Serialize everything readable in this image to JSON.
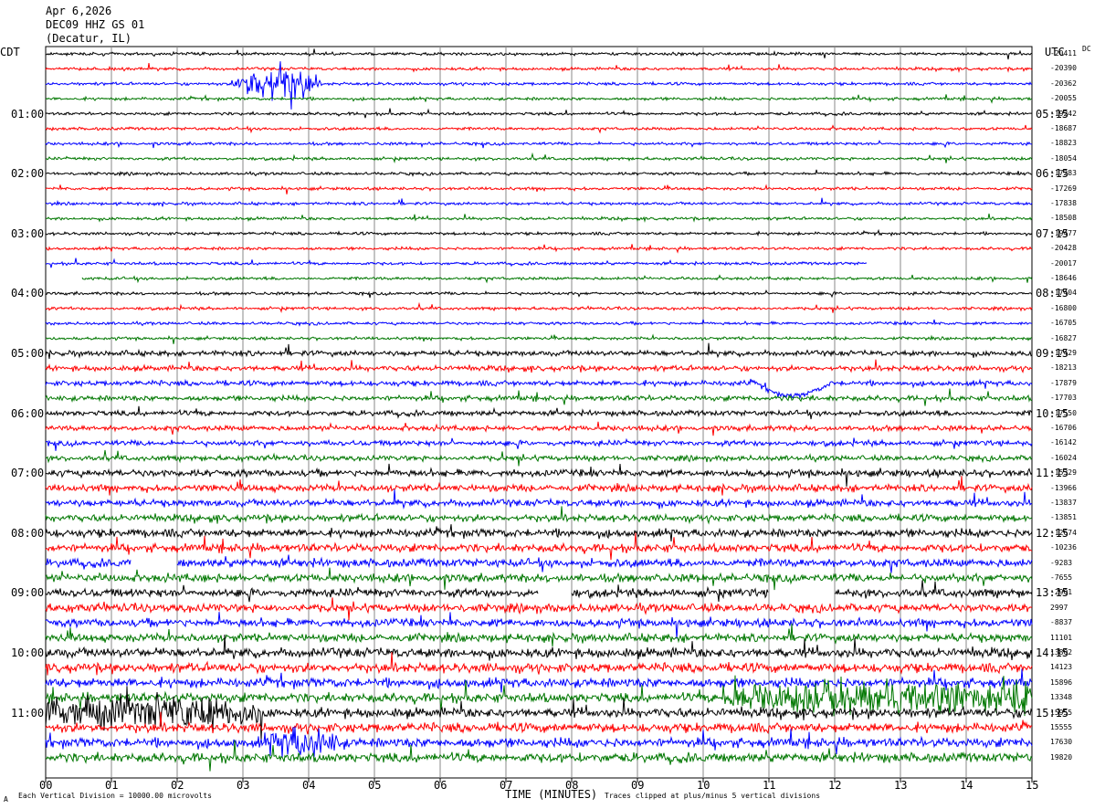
{
  "header": {
    "date": "Apr 6,2026",
    "station": "DEC09 HHZ GS 01",
    "location": "(Decatur, IL)"
  },
  "left_axis_label": "CDT",
  "right_axis_label": "UTC",
  "dc_label": "DC",
  "left_hours": [
    "01:00",
    "02:00",
    "03:00",
    "04:00",
    "05:00",
    "06:00",
    "07:00",
    "08:00",
    "09:00",
    "10:00",
    "11:00"
  ],
  "right_hours": [
    "05:15",
    "06:15",
    "07:15",
    "08:15",
    "09:15",
    "10:15",
    "11:15",
    "12:15",
    "13:15",
    "14:15",
    "15:15"
  ],
  "dc_offsets": [
    "-20411",
    "-20390",
    "-20362",
    "-20055",
    "-19242",
    "-18687",
    "-18823",
    "-18054",
    "-17283",
    "-17269",
    "-17838",
    "-18508",
    "-19477",
    "-20428",
    "-20017",
    "-18646",
    "-17404",
    "-16800",
    "-16705",
    "-16827",
    "-17429",
    "-18213",
    "-17879",
    "-17703",
    "-17550",
    "-16706",
    "-16142",
    "-16024",
    "-15329",
    "-13966",
    "-13837",
    "-13851",
    "-12674",
    "-10236",
    "-9283",
    "-7655",
    "-2901",
    "2997",
    "-8837",
    "11101",
    "13802",
    "14123",
    "15896",
    "13348",
    "15955",
    "15555",
    "17630",
    "19820"
  ],
  "x_ticks": [
    "00",
    "01",
    "02",
    "03",
    "04",
    "05",
    "06",
    "07",
    "08",
    "09",
    "10",
    "11",
    "12",
    "13",
    "14",
    "15"
  ],
  "x_axis_title": "TIME (MINUTES)",
  "footer_left": "Each Vertical Division = 10000.00 microvolts",
  "footer_right": "Traces clipped at plus/minus 5 vertical divisions",
  "corner_mark": "A",
  "trace_colors": [
    "#000000",
    "#ff0000",
    "#0000ff",
    "#007700"
  ],
  "chart_data": {
    "type": "line",
    "x_range_minutes": [
      0,
      15
    ],
    "traces_count": 48,
    "traces_per_hour": 4,
    "minutes_per_trace": 15,
    "events": [
      {
        "trace": 2,
        "start_min": 2.8,
        "end_min": 4.2,
        "amplitude": 36
      },
      {
        "trace": 22,
        "kind": "dip",
        "start_min": 10.8,
        "end_min": 12.6,
        "amplitude": 20
      },
      {
        "trace": 43,
        "start_min": 10.3,
        "end_min": 15,
        "amplitude": 22
      },
      {
        "trace": 44,
        "start_min": 0,
        "end_min": 3.3,
        "amplitude": 24
      },
      {
        "trace": 46,
        "start_min": 3.2,
        "end_min": 4.6,
        "amplitude": 20
      }
    ],
    "gaps": [
      {
        "trace": 14,
        "start_min": 12.5,
        "end_min": 15
      },
      {
        "trace": 15,
        "start_min": 0,
        "end_min": 0.55
      },
      {
        "trace": 34,
        "start_min": 1.3,
        "end_min": 2.0
      },
      {
        "trace": 36,
        "start_min": 7.5,
        "end_min": 8.0
      },
      {
        "trace": 36,
        "start_min": 11.0,
        "end_min": 12.0
      }
    ]
  }
}
